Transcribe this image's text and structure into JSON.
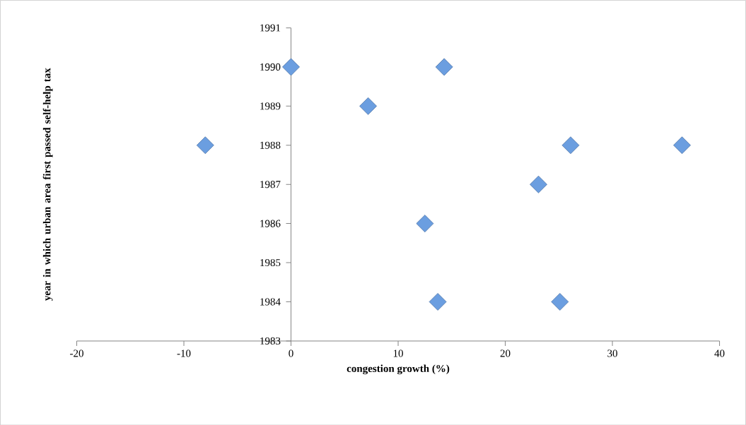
{
  "chart_data": {
    "type": "scatter",
    "xlabel": "congestion growth (%)",
    "ylabel": "year in which urban area first passed self-help tax",
    "x": [
      0,
      14.3,
      7.2,
      -8,
      26.1,
      36.5,
      23.1,
      12.5,
      13.7,
      25.1
    ],
    "values": [
      1990,
      1990,
      1989,
      1988,
      1988,
      1988,
      1987,
      1986,
      1984,
      1984
    ],
    "color": "#6b9ee0",
    "marker": "diamond",
    "xlim": [
      -20,
      40
    ],
    "xticks": [
      -20,
      -10,
      0,
      10,
      20,
      30,
      40
    ],
    "ylim": [
      1983,
      1991
    ],
    "yticks": [
      1983,
      1984,
      1985,
      1986,
      1987,
      1988,
      1989,
      1990,
      1991
    ]
  }
}
